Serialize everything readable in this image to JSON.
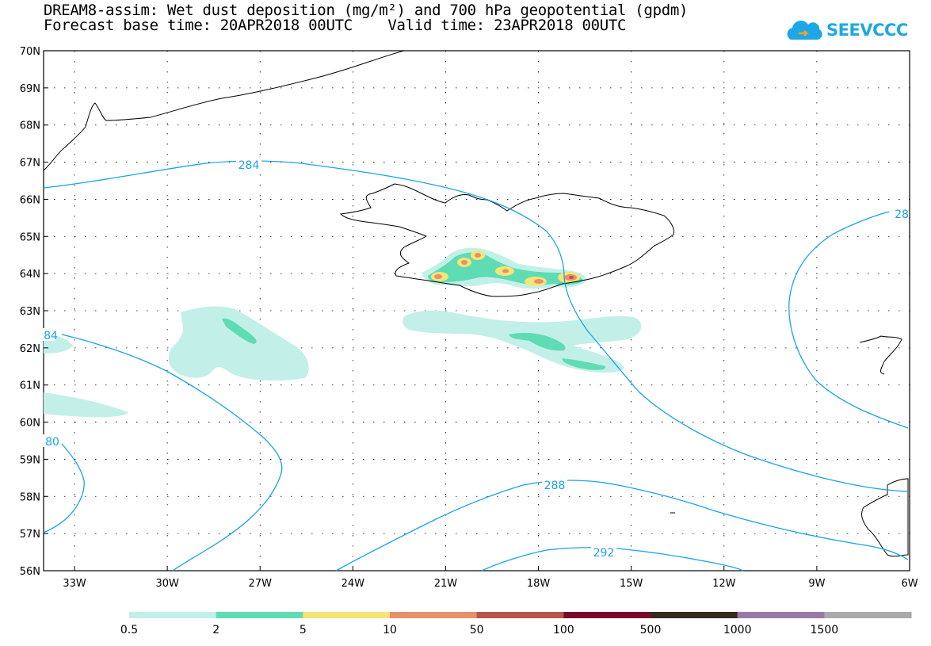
{
  "title": {
    "line1": "DREAM8-assim: Wet dust deposition (mg/m²) and 700 hPa geopotential (gpdm)",
    "line2": "Forecast base time: 20APR2018 00UTC    Valid time: 23APR2018 00UTC"
  },
  "logo": {
    "text": "SEEVCCC",
    "color": "#1ea7e6"
  },
  "map": {
    "lat_labels": [
      "70N",
      "69N",
      "68N",
      "67N",
      "66N",
      "65N",
      "64N",
      "63N",
      "62N",
      "61N",
      "60N",
      "59N",
      "58N",
      "57N",
      "56N"
    ],
    "lon_labels": [
      "33W",
      "30W",
      "27W",
      "24W",
      "21W",
      "18W",
      "15W",
      "12W",
      "9W",
      "6W"
    ],
    "contour_labels": [
      "284",
      "28",
      "84",
      "80",
      "288",
      "292"
    ],
    "contour_color": "#1aa3e8"
  },
  "legend": {
    "colors": [
      "#c2f0e8",
      "#5fdcb4",
      "#f5e476",
      "#e89068",
      "#b5574a",
      "#7a0a28",
      "#3a2a1c",
      "#9a78a8",
      "#aaaaaa"
    ],
    "labels": [
      "0.5",
      "2",
      "5",
      "10",
      "50",
      "100",
      "500",
      "1000",
      "1500"
    ]
  }
}
